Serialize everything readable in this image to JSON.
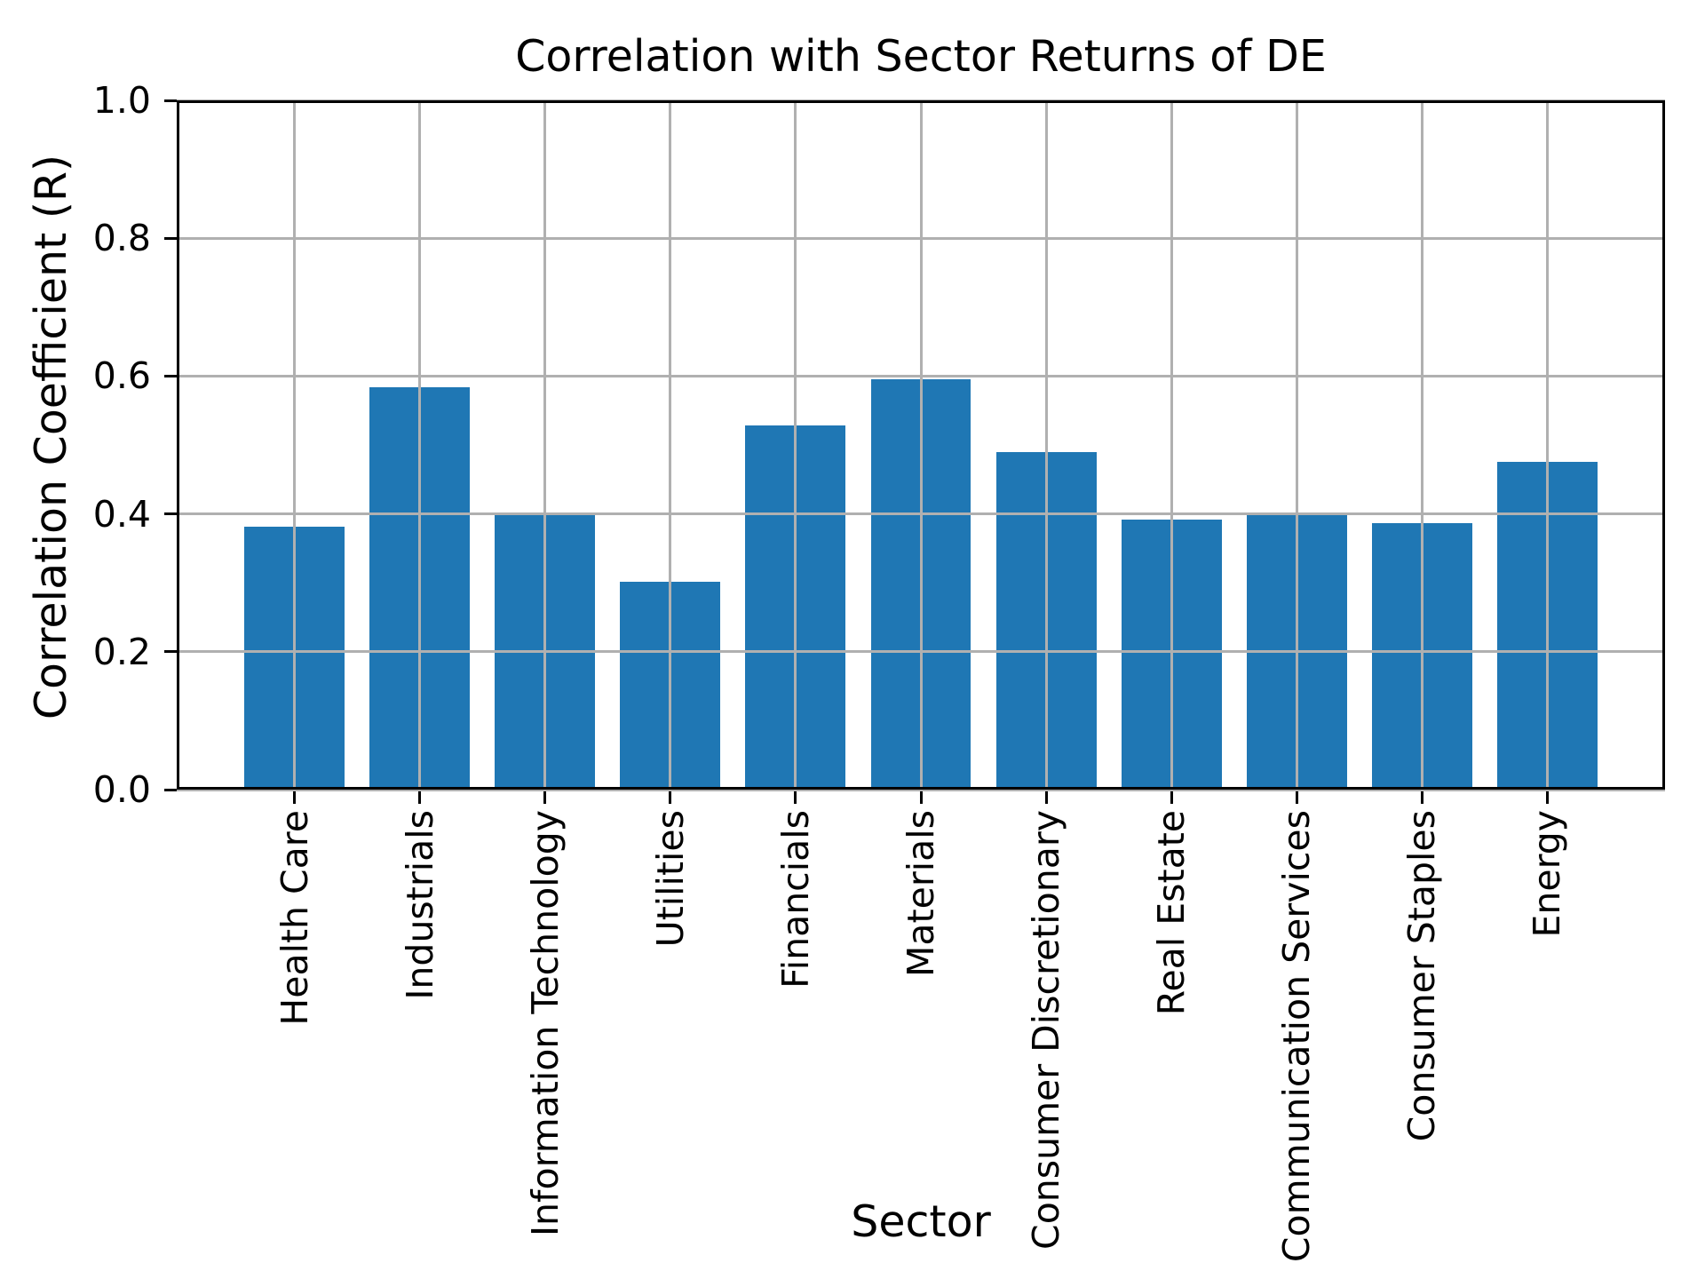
{
  "chart_data": {
    "type": "bar",
    "title": "Correlation with Sector Returns of DE",
    "xlabel": "Sector",
    "ylabel": "Correlation Coefficient (R)",
    "categories": [
      "Health Care",
      "Industrials",
      "Information Technology",
      "Utilities",
      "Financials",
      "Materials",
      "Consumer Discretionary",
      "Real Estate",
      "Communication Services",
      "Consumer Staples",
      "Energy"
    ],
    "values": [
      0.381,
      0.584,
      0.401,
      0.301,
      0.529,
      0.596,
      0.49,
      0.392,
      0.4,
      0.387,
      0.476
    ],
    "ylim": [
      0.0,
      1.0
    ],
    "yticks": [
      0.0,
      0.2,
      0.4,
      0.6,
      0.8,
      1.0
    ],
    "ytick_labels": [
      "0.0",
      "0.2",
      "0.4",
      "0.6",
      "0.8",
      "1.0"
    ],
    "x_tick_rotation_degrees": 90,
    "grid": true,
    "grid_over_bars": true,
    "legend_position": "none",
    "bar_color": "#1f77b4",
    "grid_color": "#b0b0b0",
    "axis_color": "#000000",
    "text_color": "#000000",
    "background_color": "#ffffff"
  }
}
